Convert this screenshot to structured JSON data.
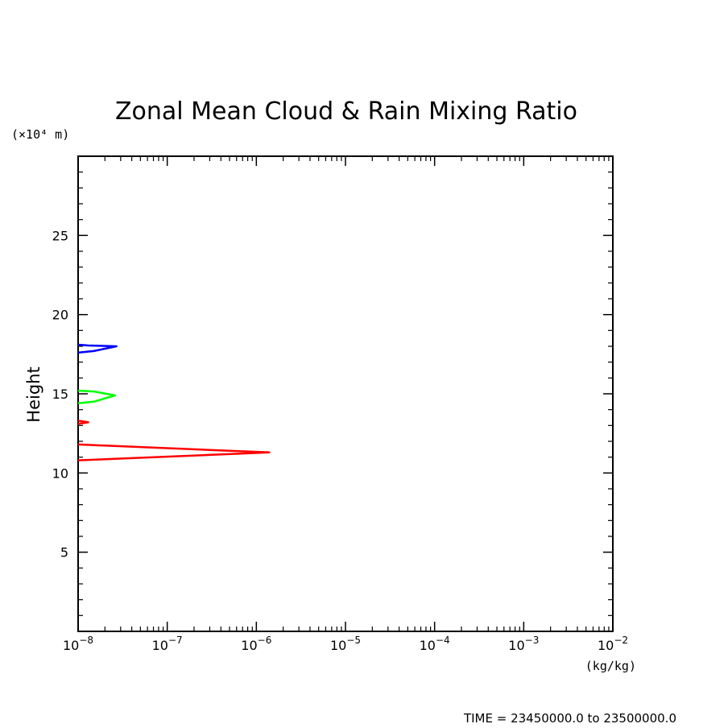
{
  "chart_data": {
    "type": "line",
    "title": "Zonal Mean Cloud & Rain Mixing Ratio",
    "xlabel": "(kg/kg)",
    "ylabel": "Height",
    "y_unit_label": "(×10⁴ m)",
    "x_scale": "log",
    "xlim": [
      1e-08,
      0.01
    ],
    "ylim": [
      0,
      30
    ],
    "x_tick_labels": [
      {
        "base": "10",
        "exp": "−8"
      },
      {
        "base": "10",
        "exp": "−7"
      },
      {
        "base": "10",
        "exp": "−6"
      },
      {
        "base": "10",
        "exp": "−5"
      },
      {
        "base": "10",
        "exp": "−4"
      },
      {
        "base": "10",
        "exp": "−3"
      },
      {
        "base": "10",
        "exp": "−2"
      }
    ],
    "y_ticks": [
      5,
      10,
      15,
      20,
      25
    ],
    "y_tick_labels": [
      "5",
      "10",
      "15",
      "20",
      "25"
    ],
    "grid": false,
    "series": [
      {
        "color": "#ff0000",
        "points": [
          [
            1e-08,
            11.8
          ],
          [
            1.4e-06,
            11.3
          ],
          [
            1e-08,
            10.8
          ]
        ]
      },
      {
        "color": "#ff0000",
        "points": [
          [
            1e-08,
            13.3
          ],
          [
            1.3e-08,
            13.2
          ],
          [
            1e-08,
            13.1
          ]
        ]
      },
      {
        "color": "#00ff00",
        "points": [
          [
            1e-08,
            15.2
          ],
          [
            1.5e-08,
            15.15
          ],
          [
            2.6e-08,
            14.9
          ],
          [
            1.5e-08,
            14.5
          ],
          [
            1e-08,
            14.4
          ]
        ]
      },
      {
        "color": "#0000ff",
        "points": [
          [
            1e-08,
            18.1
          ],
          [
            1.3e-08,
            18.05
          ],
          [
            2.7e-08,
            18.0
          ],
          [
            1.5e-08,
            17.7
          ],
          [
            1e-08,
            17.6
          ]
        ]
      }
    ],
    "footer": "TIME = 23450000.0 to 23500000.0"
  }
}
